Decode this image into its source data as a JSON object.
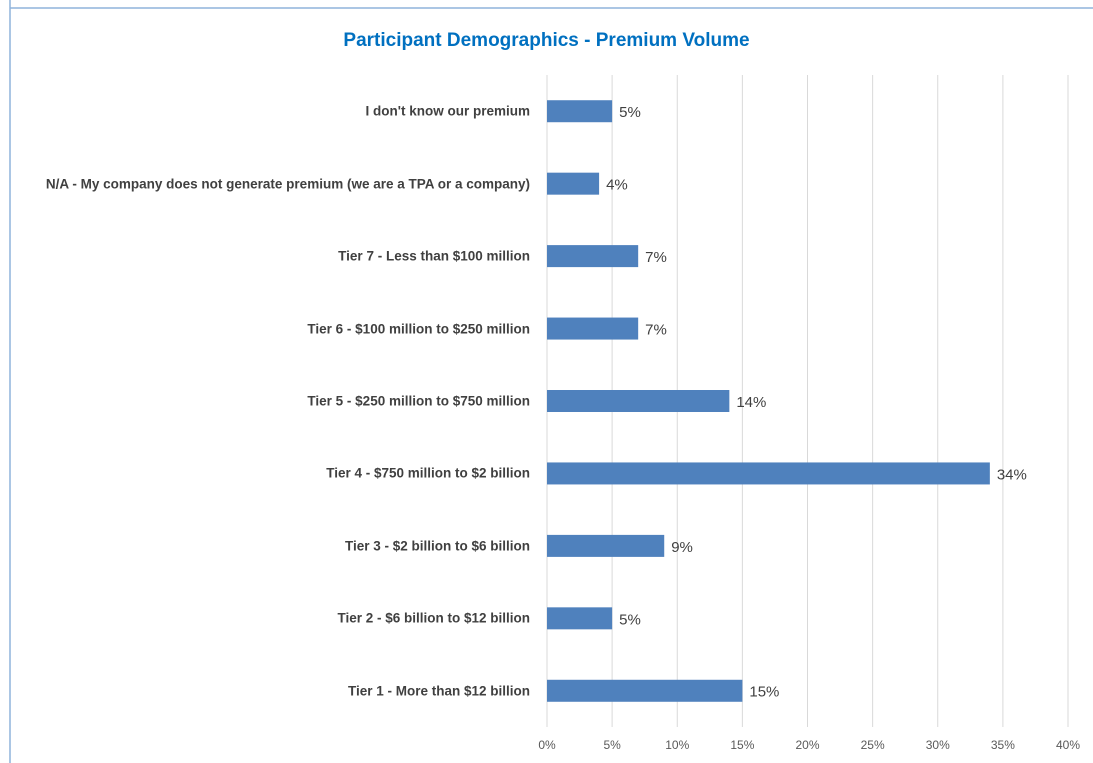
{
  "chart_data": {
    "type": "bar",
    "orientation": "horizontal",
    "title": "Participant Demographics - Premium Volume",
    "categories": [
      "I don't know our premium",
      "N/A - My company does not generate premium (we are a TPA or a company)",
      "Tier 7 - Less than $100 million",
      "Tier 6 - $100 million to $250 million",
      "Tier 5 - $250 million to $750 million",
      "Tier 4 - $750 million to $2 billion",
      "Tier 3 - $2 billion to $6 billion",
      "Tier 2 - $6 billion to $12 billion",
      "Tier 1 - More than $12 billion"
    ],
    "values": [
      5,
      4,
      7,
      7,
      14,
      34,
      9,
      5,
      15
    ],
    "value_labels": [
      "5%",
      "4%",
      "7%",
      "7%",
      "14%",
      "34%",
      "9%",
      "5%",
      "15%"
    ],
    "color": "#4f81bd",
    "xlim": [
      0,
      40
    ],
    "xticks": [
      {
        "value": 0,
        "label": "0%"
      },
      {
        "value": 5,
        "label": "5%"
      },
      {
        "value": 10,
        "label": "10%"
      },
      {
        "value": 15,
        "label": "15%"
      },
      {
        "value": 20,
        "label": "20%"
      },
      {
        "value": 25,
        "label": "25%"
      },
      {
        "value": 30,
        "label": "30%"
      },
      {
        "value": 35,
        "label": "35%"
      },
      {
        "value": 40,
        "label": "40%"
      }
    ],
    "grid": true
  }
}
